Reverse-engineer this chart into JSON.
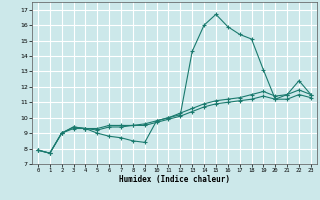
{
  "xlabel": "Humidex (Indice chaleur)",
  "bg_color": "#cce8ea",
  "grid_color": "#ffffff",
  "line_color": "#1a7a6e",
  "xlim": [
    -0.5,
    23.5
  ],
  "ylim": [
    7,
    17.5
  ],
  "xticks": [
    0,
    1,
    2,
    3,
    4,
    5,
    6,
    7,
    8,
    9,
    10,
    11,
    12,
    13,
    14,
    15,
    16,
    17,
    18,
    19,
    20,
    21,
    22,
    23
  ],
  "yticks": [
    7,
    8,
    9,
    10,
    11,
    12,
    13,
    14,
    15,
    16,
    17
  ],
  "line1_x": [
    0,
    1,
    2,
    3,
    4,
    5,
    6,
    7,
    8,
    9,
    10,
    11,
    12,
    13,
    14,
    15,
    16,
    17,
    18,
    19,
    20,
    21,
    22,
    23
  ],
  "line1_y": [
    7.9,
    7.7,
    9.0,
    9.4,
    9.3,
    9.0,
    8.8,
    8.7,
    8.5,
    8.4,
    9.8,
    10.0,
    10.2,
    14.3,
    16.0,
    16.7,
    15.9,
    15.4,
    15.1,
    13.1,
    11.2,
    11.5,
    12.4,
    11.5
  ],
  "line2_x": [
    0,
    1,
    2,
    3,
    4,
    5,
    6,
    7,
    8,
    9,
    10,
    11,
    12,
    13,
    14,
    15,
    16,
    17,
    18,
    19,
    20,
    21,
    22,
    23
  ],
  "line2_y": [
    7.9,
    7.7,
    9.0,
    9.4,
    9.3,
    9.3,
    9.5,
    9.5,
    9.5,
    9.6,
    9.8,
    10.0,
    10.3,
    10.6,
    10.9,
    11.1,
    11.2,
    11.3,
    11.5,
    11.7,
    11.4,
    11.5,
    11.8,
    11.5
  ],
  "line3_x": [
    0,
    1,
    2,
    3,
    4,
    5,
    6,
    7,
    8,
    9,
    10,
    11,
    12,
    13,
    14,
    15,
    16,
    17,
    18,
    19,
    20,
    21,
    22,
    23
  ],
  "line3_y": [
    7.9,
    7.7,
    9.0,
    9.3,
    9.3,
    9.2,
    9.4,
    9.4,
    9.5,
    9.5,
    9.7,
    9.9,
    10.1,
    10.4,
    10.7,
    10.9,
    11.0,
    11.1,
    11.2,
    11.4,
    11.2,
    11.2,
    11.5,
    11.3
  ]
}
